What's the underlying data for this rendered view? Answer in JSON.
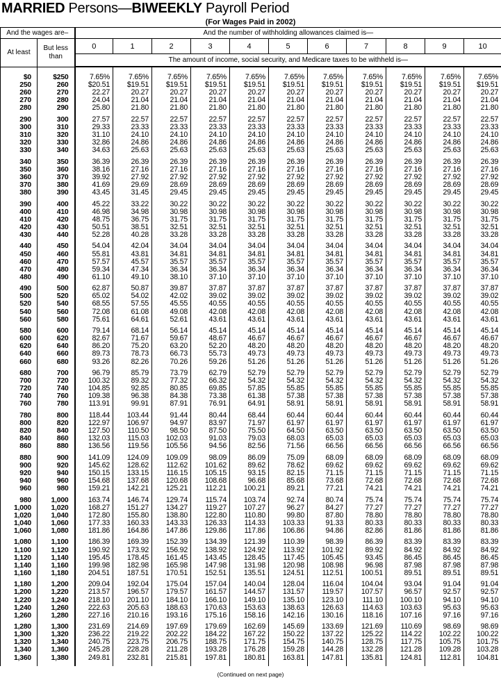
{
  "title": {
    "part1": "MARRIED",
    "part2": " Persons—",
    "part3": "BIWEEKLY",
    "part4": " Payroll Period"
  },
  "subtitle": "(For Wages Paid in 2002)",
  "header": {
    "wages": "And the wages are–",
    "allowances": "And the number of withholding allowances claimed is—",
    "at_least": "At least",
    "but_less_than": "But less than",
    "allowance_numbers": [
      "0",
      "1",
      "2",
      "3",
      "4",
      "5",
      "6",
      "7",
      "8",
      "9",
      "10"
    ],
    "amount_note": "The amount of income, social security, and Medicare taxes to be withheld is—"
  },
  "rows": [
    [
      [
        "$0",
        "$250",
        "7.65%",
        "7.65%",
        "7.65%",
        "7.65%",
        "7.65%",
        "7.65%",
        "7.65%",
        "7.65%",
        "7.65%",
        "7.65%",
        "7.65%"
      ],
      [
        "250",
        "260",
        "$20.51",
        "$19.51",
        "$19.51",
        "$19.51",
        "$19.51",
        "$19.51",
        "$19.51",
        "$19.51",
        "$19.51",
        "$19.51",
        "$19.51"
      ],
      [
        "260",
        "270",
        "22.27",
        "20.27",
        "20.27",
        "20.27",
        "20.27",
        "20.27",
        "20.27",
        "20.27",
        "20.27",
        "20.27",
        "20.27"
      ],
      [
        "270",
        "280",
        "24.04",
        "21.04",
        "21.04",
        "21.04",
        "21.04",
        "21.04",
        "21.04",
        "21.04",
        "21.04",
        "21.04",
        "21.04"
      ],
      [
        "280",
        "290",
        "25.80",
        "21.80",
        "21.80",
        "21.80",
        "21.80",
        "21.80",
        "21.80",
        "21.80",
        "21.80",
        "21.80",
        "21.80"
      ]
    ],
    [
      [
        "290",
        "300",
        "27.57",
        "22.57",
        "22.57",
        "22.57",
        "22.57",
        "22.57",
        "22.57",
        "22.57",
        "22.57",
        "22.57",
        "22.57"
      ],
      [
        "300",
        "310",
        "29.33",
        "23.33",
        "23.33",
        "23.33",
        "23.33",
        "23.33",
        "23.33",
        "23.33",
        "23.33",
        "23.33",
        "23.33"
      ],
      [
        "310",
        "320",
        "31.10",
        "24.10",
        "24.10",
        "24.10",
        "24.10",
        "24.10",
        "24.10",
        "24.10",
        "24.10",
        "24.10",
        "24.10"
      ],
      [
        "320",
        "330",
        "32.86",
        "24.86",
        "24.86",
        "24.86",
        "24.86",
        "24.86",
        "24.86",
        "24.86",
        "24.86",
        "24.86",
        "24.86"
      ],
      [
        "330",
        "340",
        "34.63",
        "25.63",
        "25.63",
        "25.63",
        "25.63",
        "25.63",
        "25.63",
        "25.63",
        "25.63",
        "25.63",
        "25.63"
      ]
    ],
    [
      [
        "340",
        "350",
        "36.39",
        "26.39",
        "26.39",
        "26.39",
        "26.39",
        "26.39",
        "26.39",
        "26.39",
        "26.39",
        "26.39",
        "26.39"
      ],
      [
        "350",
        "360",
        "38.16",
        "27.16",
        "27.16",
        "27.16",
        "27.16",
        "27.16",
        "27.16",
        "27.16",
        "27.16",
        "27.16",
        "27.16"
      ],
      [
        "360",
        "370",
        "39.92",
        "27.92",
        "27.92",
        "27.92",
        "27.92",
        "27.92",
        "27.92",
        "27.92",
        "27.92",
        "27.92",
        "27.92"
      ],
      [
        "370",
        "380",
        "41.69",
        "29.69",
        "28.69",
        "28.69",
        "28.69",
        "28.69",
        "28.69",
        "28.69",
        "28.69",
        "28.69",
        "28.69"
      ],
      [
        "380",
        "390",
        "43.45",
        "31.45",
        "29.45",
        "29.45",
        "29.45",
        "29.45",
        "29.45",
        "29.45",
        "29.45",
        "29.45",
        "29.45"
      ]
    ],
    [
      [
        "390",
        "400",
        "45.22",
        "33.22",
        "30.22",
        "30.22",
        "30.22",
        "30.22",
        "30.22",
        "30.22",
        "30.22",
        "30.22",
        "30.22"
      ],
      [
        "400",
        "410",
        "46.98",
        "34.98",
        "30.98",
        "30.98",
        "30.98",
        "30.98",
        "30.98",
        "30.98",
        "30.98",
        "30.98",
        "30.98"
      ],
      [
        "410",
        "420",
        "48.75",
        "36.75",
        "31.75",
        "31.75",
        "31.75",
        "31.75",
        "31.75",
        "31.75",
        "31.75",
        "31.75",
        "31.75"
      ],
      [
        "420",
        "430",
        "50.51",
        "38.51",
        "32.51",
        "32.51",
        "32.51",
        "32.51",
        "32.51",
        "32.51",
        "32.51",
        "32.51",
        "32.51"
      ],
      [
        "430",
        "440",
        "52.28",
        "40.28",
        "33.28",
        "33.28",
        "33.28",
        "33.28",
        "33.28",
        "33.28",
        "33.28",
        "33.28",
        "33.28"
      ]
    ],
    [
      [
        "440",
        "450",
        "54.04",
        "42.04",
        "34.04",
        "34.04",
        "34.04",
        "34.04",
        "34.04",
        "34.04",
        "34.04",
        "34.04",
        "34.04"
      ],
      [
        "450",
        "460",
        "55.81",
        "43.81",
        "34.81",
        "34.81",
        "34.81",
        "34.81",
        "34.81",
        "34.81",
        "34.81",
        "34.81",
        "34.81"
      ],
      [
        "460",
        "470",
        "57.57",
        "45.57",
        "35.57",
        "35.57",
        "35.57",
        "35.57",
        "35.57",
        "35.57",
        "35.57",
        "35.57",
        "35.57"
      ],
      [
        "470",
        "480",
        "59.34",
        "47.34",
        "36.34",
        "36.34",
        "36.34",
        "36.34",
        "36.34",
        "36.34",
        "36.34",
        "36.34",
        "36.34"
      ],
      [
        "480",
        "490",
        "61.10",
        "49.10",
        "38.10",
        "37.10",
        "37.10",
        "37.10",
        "37.10",
        "37.10",
        "37.10",
        "37.10",
        "37.10"
      ]
    ],
    [
      [
        "490",
        "500",
        "62.87",
        "50.87",
        "39.87",
        "37.87",
        "37.87",
        "37.87",
        "37.87",
        "37.87",
        "37.87",
        "37.87",
        "37.87"
      ],
      [
        "500",
        "520",
        "65.02",
        "54.02",
        "42.02",
        "39.02",
        "39.02",
        "39.02",
        "39.02",
        "39.02",
        "39.02",
        "39.02",
        "39.02"
      ],
      [
        "520",
        "540",
        "68.55",
        "57.55",
        "45.55",
        "40.55",
        "40.55",
        "40.55",
        "40.55",
        "40.55",
        "40.55",
        "40.55",
        "40.55"
      ],
      [
        "540",
        "560",
        "72.08",
        "61.08",
        "49.08",
        "42.08",
        "42.08",
        "42.08",
        "42.08",
        "42.08",
        "42.08",
        "42.08",
        "42.08"
      ],
      [
        "560",
        "580",
        "75.61",
        "64.61",
        "52.61",
        "43.61",
        "43.61",
        "43.61",
        "43.61",
        "43.61",
        "43.61",
        "43.61",
        "43.61"
      ]
    ],
    [
      [
        "580",
        "600",
        "79.14",
        "68.14",
        "56.14",
        "45.14",
        "45.14",
        "45.14",
        "45.14",
        "45.14",
        "45.14",
        "45.14",
        "45.14"
      ],
      [
        "600",
        "620",
        "82.67",
        "71.67",
        "59.67",
        "48.67",
        "46.67",
        "46.67",
        "46.67",
        "46.67",
        "46.67",
        "46.67",
        "46.67"
      ],
      [
        "620",
        "640",
        "86.20",
        "75.20",
        "63.20",
        "52.20",
        "48.20",
        "48.20",
        "48.20",
        "48.20",
        "48.20",
        "48.20",
        "48.20"
      ],
      [
        "640",
        "660",
        "89.73",
        "78.73",
        "66.73",
        "55.73",
        "49.73",
        "49.73",
        "49.73",
        "49.73",
        "49.73",
        "49.73",
        "49.73"
      ],
      [
        "660",
        "680",
        "93.26",
        "82.26",
        "70.26",
        "59.26",
        "51.26",
        "51.26",
        "51.26",
        "51.26",
        "51.26",
        "51.26",
        "51.26"
      ]
    ],
    [
      [
        "680",
        "700",
        "96.79",
        "85.79",
        "73.79",
        "62.79",
        "52.79",
        "52.79",
        "52.79",
        "52.79",
        "52.79",
        "52.79",
        "52.79"
      ],
      [
        "700",
        "720",
        "100.32",
        "89.32",
        "77.32",
        "66.32",
        "54.32",
        "54.32",
        "54.32",
        "54.32",
        "54.32",
        "54.32",
        "54.32"
      ],
      [
        "720",
        "740",
        "104.85",
        "92.85",
        "80.85",
        "69.85",
        "57.85",
        "55.85",
        "55.85",
        "55.85",
        "55.85",
        "55.85",
        "55.85"
      ],
      [
        "740",
        "760",
        "109.38",
        "96.38",
        "84.38",
        "73.38",
        "61.38",
        "57.38",
        "57.38",
        "57.38",
        "57.38",
        "57.38",
        "57.38"
      ],
      [
        "760",
        "780",
        "113.91",
        "99.91",
        "87.91",
        "76.91",
        "64.91",
        "58.91",
        "58.91",
        "58.91",
        "58.91",
        "58.91",
        "58.91"
      ]
    ],
    [
      [
        "780",
        "800",
        "118.44",
        "103.44",
        "91.44",
        "80.44",
        "68.44",
        "60.44",
        "60.44",
        "60.44",
        "60.44",
        "60.44",
        "60.44"
      ],
      [
        "800",
        "820",
        "122.97",
        "106.97",
        "94.97",
        "83.97",
        "71.97",
        "61.97",
        "61.97",
        "61.97",
        "61.97",
        "61.97",
        "61.97"
      ],
      [
        "820",
        "840",
        "127.50",
        "110.50",
        "98.50",
        "87.50",
        "75.50",
        "64.50",
        "63.50",
        "63.50",
        "63.50",
        "63.50",
        "63.50"
      ],
      [
        "840",
        "860",
        "132.03",
        "115.03",
        "102.03",
        "91.03",
        "79.03",
        "68.03",
        "65.03",
        "65.03",
        "65.03",
        "65.03",
        "65.03"
      ],
      [
        "860",
        "880",
        "136.56",
        "119.56",
        "105.56",
        "94.56",
        "82.56",
        "71.56",
        "66.56",
        "66.56",
        "66.56",
        "66.56",
        "66.56"
      ]
    ],
    [
      [
        "880",
        "900",
        "141.09",
        "124.09",
        "109.09",
        "98.09",
        "86.09",
        "75.09",
        "68.09",
        "68.09",
        "68.09",
        "68.09",
        "68.09"
      ],
      [
        "900",
        "920",
        "145.62",
        "128.62",
        "112.62",
        "101.62",
        "89.62",
        "78.62",
        "69.62",
        "69.62",
        "69.62",
        "69.62",
        "69.62"
      ],
      [
        "920",
        "940",
        "150.15",
        "133.15",
        "116.15",
        "105.15",
        "93.15",
        "82.15",
        "71.15",
        "71.15",
        "71.15",
        "71.15",
        "71.15"
      ],
      [
        "940",
        "960",
        "154.68",
        "137.68",
        "120.68",
        "108.68",
        "96.68",
        "85.68",
        "73.68",
        "72.68",
        "72.68",
        "72.68",
        "72.68"
      ],
      [
        "960",
        "980",
        "159.21",
        "142.21",
        "125.21",
        "112.21",
        "100.21",
        "89.21",
        "77.21",
        "74.21",
        "74.21",
        "74.21",
        "74.21"
      ]
    ],
    [
      [
        "980",
        "1,000",
        "163.74",
        "146.74",
        "129.74",
        "115.74",
        "103.74",
        "92.74",
        "80.74",
        "75.74",
        "75.74",
        "75.74",
        "75.74"
      ],
      [
        "1,000",
        "1,020",
        "168.27",
        "151.27",
        "134.27",
        "119.27",
        "107.27",
        "96.27",
        "84.27",
        "77.27",
        "77.27",
        "77.27",
        "77.27"
      ],
      [
        "1,020",
        "1,040",
        "172.80",
        "155.80",
        "138.80",
        "122.80",
        "110.80",
        "99.80",
        "87.80",
        "78.80",
        "78.80",
        "78.80",
        "78.80"
      ],
      [
        "1,040",
        "1,060",
        "177.33",
        "160.33",
        "143.33",
        "126.33",
        "114.33",
        "103.33",
        "91.33",
        "80.33",
        "80.33",
        "80.33",
        "80.33"
      ],
      [
        "1,060",
        "1,080",
        "181.86",
        "164.86",
        "147.86",
        "129.86",
        "117.86",
        "106.86",
        "94.86",
        "82.86",
        "81.86",
        "81.86",
        "81.86"
      ]
    ],
    [
      [
        "1,080",
        "1,100",
        "186.39",
        "169.39",
        "152.39",
        "134.39",
        "121.39",
        "110.39",
        "98.39",
        "86.39",
        "83.39",
        "83.39",
        "83.39"
      ],
      [
        "1,100",
        "1,120",
        "190.92",
        "173.92",
        "156.92",
        "138.92",
        "124.92",
        "113.92",
        "101.92",
        "89.92",
        "84.92",
        "84.92",
        "84.92"
      ],
      [
        "1,120",
        "1,140",
        "195.45",
        "178.45",
        "161.45",
        "143.45",
        "128.45",
        "117.45",
        "105.45",
        "93.45",
        "86.45",
        "86.45",
        "86.45"
      ],
      [
        "1,140",
        "1,160",
        "199.98",
        "182.98",
        "165.98",
        "147.98",
        "131.98",
        "120.98",
        "108.98",
        "96.98",
        "87.98",
        "87.98",
        "87.98"
      ],
      [
        "1,160",
        "1,180",
        "204.51",
        "187.51",
        "170.51",
        "152.51",
        "135.51",
        "124.51",
        "112.51",
        "100.51",
        "89.51",
        "89.51",
        "89.51"
      ]
    ],
    [
      [
        "1,180",
        "1,200",
        "209.04",
        "192.04",
        "175.04",
        "157.04",
        "140.04",
        "128.04",
        "116.04",
        "104.04",
        "93.04",
        "91.04",
        "91.04"
      ],
      [
        "1,200",
        "1,220",
        "213.57",
        "196.57",
        "179.57",
        "161.57",
        "144.57",
        "131.57",
        "119.57",
        "107.57",
        "96.57",
        "92.57",
        "92.57"
      ],
      [
        "1,220",
        "1,240",
        "218.10",
        "201.10",
        "184.10",
        "166.10",
        "149.10",
        "135.10",
        "123.10",
        "111.10",
        "100.10",
        "94.10",
        "94.10"
      ],
      [
        "1,240",
        "1,260",
        "222.63",
        "205.63",
        "188.63",
        "170.63",
        "153.63",
        "138.63",
        "126.63",
        "114.63",
        "103.63",
        "95.63",
        "95.63"
      ],
      [
        "1,260",
        "1,280",
        "227.16",
        "210.16",
        "193.16",
        "175.16",
        "158.16",
        "142.16",
        "130.16",
        "118.16",
        "107.16",
        "97.16",
        "97.16"
      ]
    ],
    [
      [
        "1,280",
        "1,300",
        "231.69",
        "214.69",
        "197.69",
        "179.69",
        "162.69",
        "145.69",
        "133.69",
        "121.69",
        "110.69",
        "98.69",
        "98.69"
      ],
      [
        "1,300",
        "1,320",
        "236.22",
        "219.22",
        "202.22",
        "184.22",
        "167.22",
        "150.22",
        "137.22",
        "125.22",
        "114.22",
        "102.22",
        "100.22"
      ],
      [
        "1,320",
        "1,340",
        "240.75",
        "223.75",
        "206.75",
        "188.75",
        "171.75",
        "154.75",
        "140.75",
        "128.75",
        "117.75",
        "105.75",
        "101.75"
      ],
      [
        "1,340",
        "1,360",
        "245.28",
        "228.28",
        "211.28",
        "193.28",
        "176.28",
        "159.28",
        "144.28",
        "132.28",
        "121.28",
        "109.28",
        "103.28"
      ],
      [
        "1,360",
        "1,380",
        "249.81",
        "232.81",
        "215.81",
        "197.81",
        "180.81",
        "163.81",
        "147.81",
        "135.81",
        "124.81",
        "112.81",
        "104.81"
      ]
    ]
  ],
  "footer": "(Continued on next page)"
}
